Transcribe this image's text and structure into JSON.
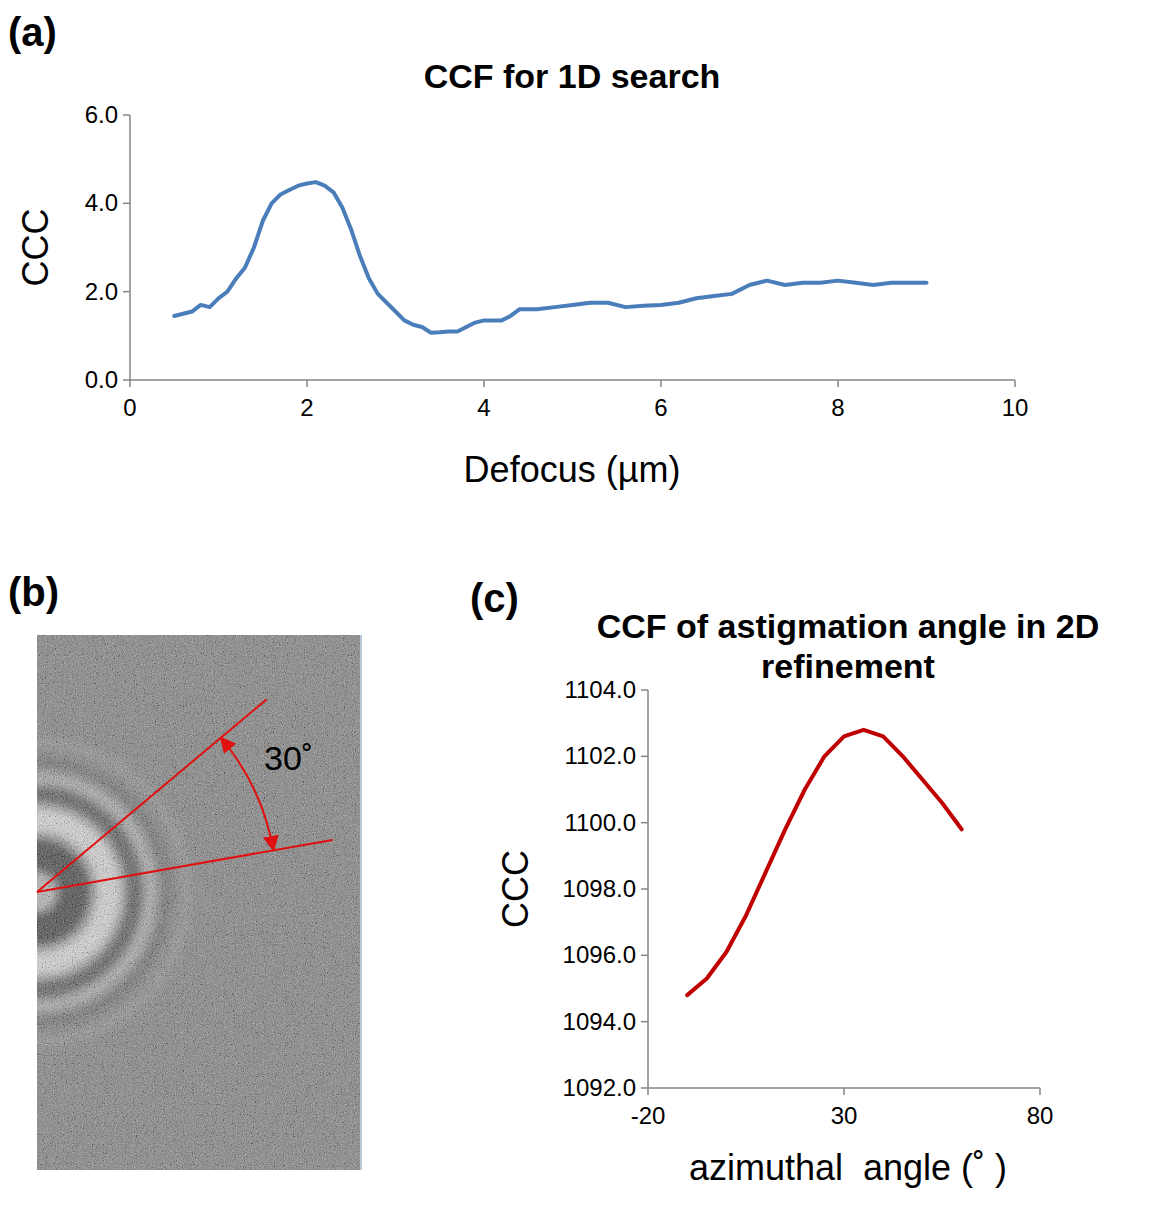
{
  "chart_data": [
    {
      "panel_label": "(a)",
      "type": "line",
      "title": "CCF for 1D search",
      "x_label": "Defocus (µm)",
      "y_label": "CCC",
      "color": "#4a7ebb",
      "xlim": [
        0,
        10
      ],
      "xticks": [
        0,
        2,
        4,
        6,
        8,
        10
      ],
      "ylim": [
        0,
        6
      ],
      "yticks": [
        {
          "value": 0,
          "label": "0.0"
        },
        {
          "value": 2,
          "label": "2.0"
        },
        {
          "value": 4,
          "label": "4.0"
        },
        {
          "value": 6,
          "label": "6.0"
        }
      ],
      "x": [
        0.5,
        0.6,
        0.7,
        0.8,
        0.9,
        1.0,
        1.1,
        1.2,
        1.3,
        1.4,
        1.5,
        1.6,
        1.7,
        1.8,
        1.9,
        2.0,
        2.1,
        2.2,
        2.3,
        2.4,
        2.5,
        2.6,
        2.7,
        2.8,
        2.9,
        3.0,
        3.1,
        3.2,
        3.3,
        3.4,
        3.5,
        3.6,
        3.7,
        3.8,
        3.9,
        4.0,
        4.2,
        4.3,
        4.4,
        4.6,
        4.8,
        5.0,
        5.2,
        5.4,
        5.6,
        5.8,
        6.0,
        6.2,
        6.4,
        6.6,
        6.8,
        7.0,
        7.2,
        7.4,
        7.6,
        7.8,
        8.0,
        8.2,
        8.4,
        8.6,
        8.8,
        9.0
      ],
      "values": [
        1.45,
        1.5,
        1.55,
        1.7,
        1.65,
        1.85,
        2.0,
        2.3,
        2.55,
        3.0,
        3.6,
        4.0,
        4.2,
        4.3,
        4.4,
        4.45,
        4.48,
        4.4,
        4.25,
        3.9,
        3.4,
        2.8,
        2.3,
        1.95,
        1.75,
        1.55,
        1.35,
        1.25,
        1.2,
        1.07,
        1.08,
        1.1,
        1.1,
        1.2,
        1.3,
        1.35,
        1.35,
        1.45,
        1.6,
        1.6,
        1.65,
        1.7,
        1.75,
        1.75,
        1.65,
        1.68,
        1.7,
        1.75,
        1.85,
        1.9,
        1.95,
        2.15,
        2.25,
        2.15,
        2.2,
        2.2,
        2.25,
        2.2,
        2.15,
        2.2,
        2.2,
        2.2
      ]
    },
    {
      "panel_label": "(c)",
      "type": "line",
      "title": "CCF of astigmation angle in 2D refinement",
      "x_label": "azimuthal  angle (˚ )",
      "y_label": "CCC",
      "color": "#c00000",
      "xlim": [
        -20,
        80
      ],
      "xticks": [
        -20,
        30,
        80
      ],
      "ylim": [
        1092,
        1104
      ],
      "yticks": [
        {
          "value": 1092,
          "label": "1092.0"
        },
        {
          "value": 1094,
          "label": "1094.0"
        },
        {
          "value": 1096,
          "label": "1096.0"
        },
        {
          "value": 1098,
          "label": "1098.0"
        },
        {
          "value": 1100,
          "label": "1100.0"
        },
        {
          "value": 1102,
          "label": "1102.0"
        },
        {
          "value": 1104,
          "label": "1104.0"
        }
      ],
      "x": [
        -10,
        -5,
        0,
        5,
        10,
        15,
        20,
        25,
        30,
        35,
        40,
        45,
        50,
        55,
        60
      ],
      "values": [
        1094.8,
        1095.3,
        1096.1,
        1097.2,
        1098.5,
        1099.8,
        1101.0,
        1102.0,
        1102.6,
        1102.8,
        1102.6,
        1102.0,
        1101.3,
        1100.6,
        1099.8
      ]
    }
  ],
  "image_panel": {
    "panel_label": "(b)",
    "annotation": "30˚"
  }
}
